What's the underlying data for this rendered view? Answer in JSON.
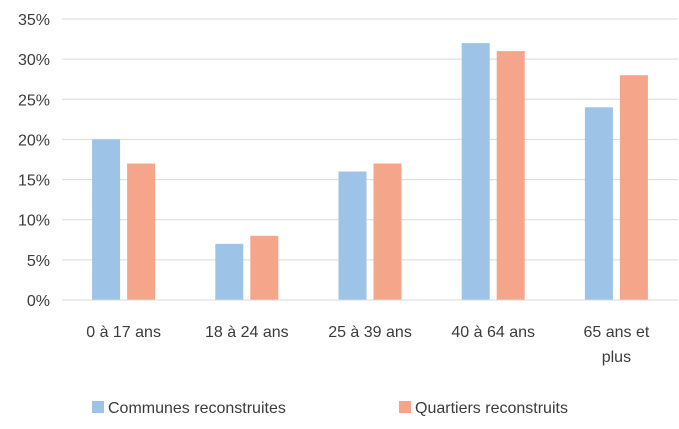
{
  "chart_data": {
    "type": "bar",
    "categories": [
      [
        "0 à 17 ans"
      ],
      [
        "18 à 24 ans"
      ],
      [
        "25 à 39 ans"
      ],
      [
        "40 à 64 ans"
      ],
      [
        "65 ans et",
        "plus"
      ]
    ],
    "series": [
      {
        "name": "Communes reconstruites",
        "values": [
          20,
          7,
          16,
          32,
          24
        ],
        "color": "#9dc3e6"
      },
      {
        "name": "Quartiers reconstruits",
        "values": [
          17,
          8,
          17,
          31,
          28
        ],
        "color": "#f4a58a"
      }
    ],
    "ylim": [
      0,
      35
    ],
    "yticks": [
      0,
      5,
      10,
      15,
      20,
      25,
      30,
      35
    ],
    "ytick_format": "%",
    "grid": true,
    "legend_position": "bottom"
  }
}
